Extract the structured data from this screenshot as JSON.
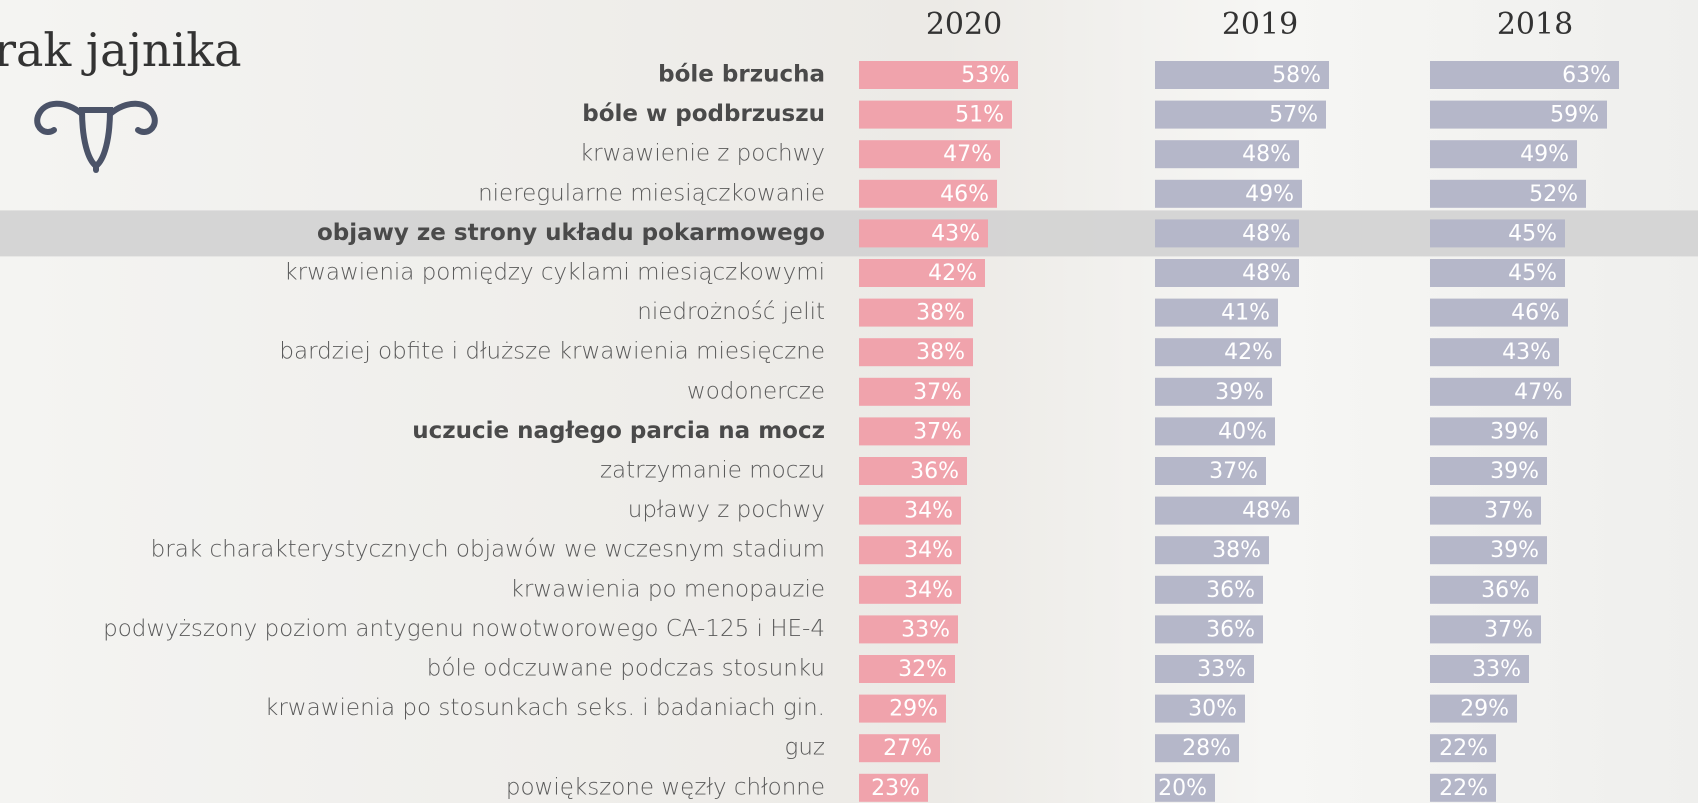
{
  "chart_data": {
    "type": "bar",
    "orientation": "horizontal",
    "title": "rak jajnika",
    "categories": [
      "bóle brzucha",
      "bóle w podbrzuszu",
      "krwawienie z pochwy",
      "nieregularne miesiączkowanie",
      "objawy ze strony układu pokarmowego",
      "krwawienia pomiędzy cyklami miesiączkowymi",
      "niedrożność jelit",
      "bardziej obfite i dłuższe krwawienia miesięczne",
      "wodonercze",
      "uczucie nagłego parcia na mocz",
      "zatrzymanie moczu",
      "upławy z pochwy",
      "brak charakterystycznych objawów we wczesnym stadium",
      "krwawienia po menopauzie",
      "podwyższony poziom antygenu nowotworowego CA-125 i HE-4",
      "bóle odczuwane podczas stosunku",
      "krwawienia po stosunkach seks. i badaniach gin.",
      "guz",
      "powiększone węzły chłonne"
    ],
    "bold_categories": [
      0,
      1,
      4,
      9
    ],
    "highlight_category": 4,
    "series": [
      {
        "name": "2020",
        "color": "#f0a3ac",
        "values": [
          53,
          51,
          47,
          46,
          43,
          42,
          38,
          38,
          37,
          37,
          36,
          34,
          34,
          34,
          33,
          32,
          29,
          27,
          23
        ],
        "value_labels": [
          "53%",
          "51%",
          "47%",
          "46%",
          "43%",
          "42%",
          "38%",
          "38%",
          "37%",
          "37%",
          "36%",
          "34%",
          "34%",
          "34%",
          "33%",
          "32%",
          "29%",
          "27%",
          "23%"
        ]
      },
      {
        "name": "2019",
        "color": "#b5b7c9",
        "values": [
          58,
          57,
          48,
          49,
          48,
          48,
          41,
          42,
          39,
          40,
          37,
          48,
          38,
          36,
          36,
          33,
          30,
          28,
          20
        ],
        "value_labels": [
          "58%",
          "57%",
          "48%",
          "49%",
          "48%",
          "48%",
          "41%",
          "42%",
          "39%",
          "40%",
          "37%",
          "48%",
          "38%",
          "36%",
          "36%",
          "33%",
          "30%",
          "28%",
          "20%"
        ]
      },
      {
        "name": "2018",
        "color": "#b5b7c9",
        "values": [
          63,
          59,
          49,
          52,
          45,
          45,
          46,
          43,
          47,
          39,
          39,
          37,
          39,
          36,
          37,
          33,
          29,
          22,
          22
        ],
        "value_labels": [
          "63%",
          "59%",
          "49%",
          "52%",
          "45%",
          "45%",
          "46%",
          "43%",
          "47%",
          "39%",
          "39%",
          "37%",
          "39%",
          "36%",
          "37%",
          "33%",
          "29%",
          "22%",
          "22%"
        ]
      }
    ]
  }
}
